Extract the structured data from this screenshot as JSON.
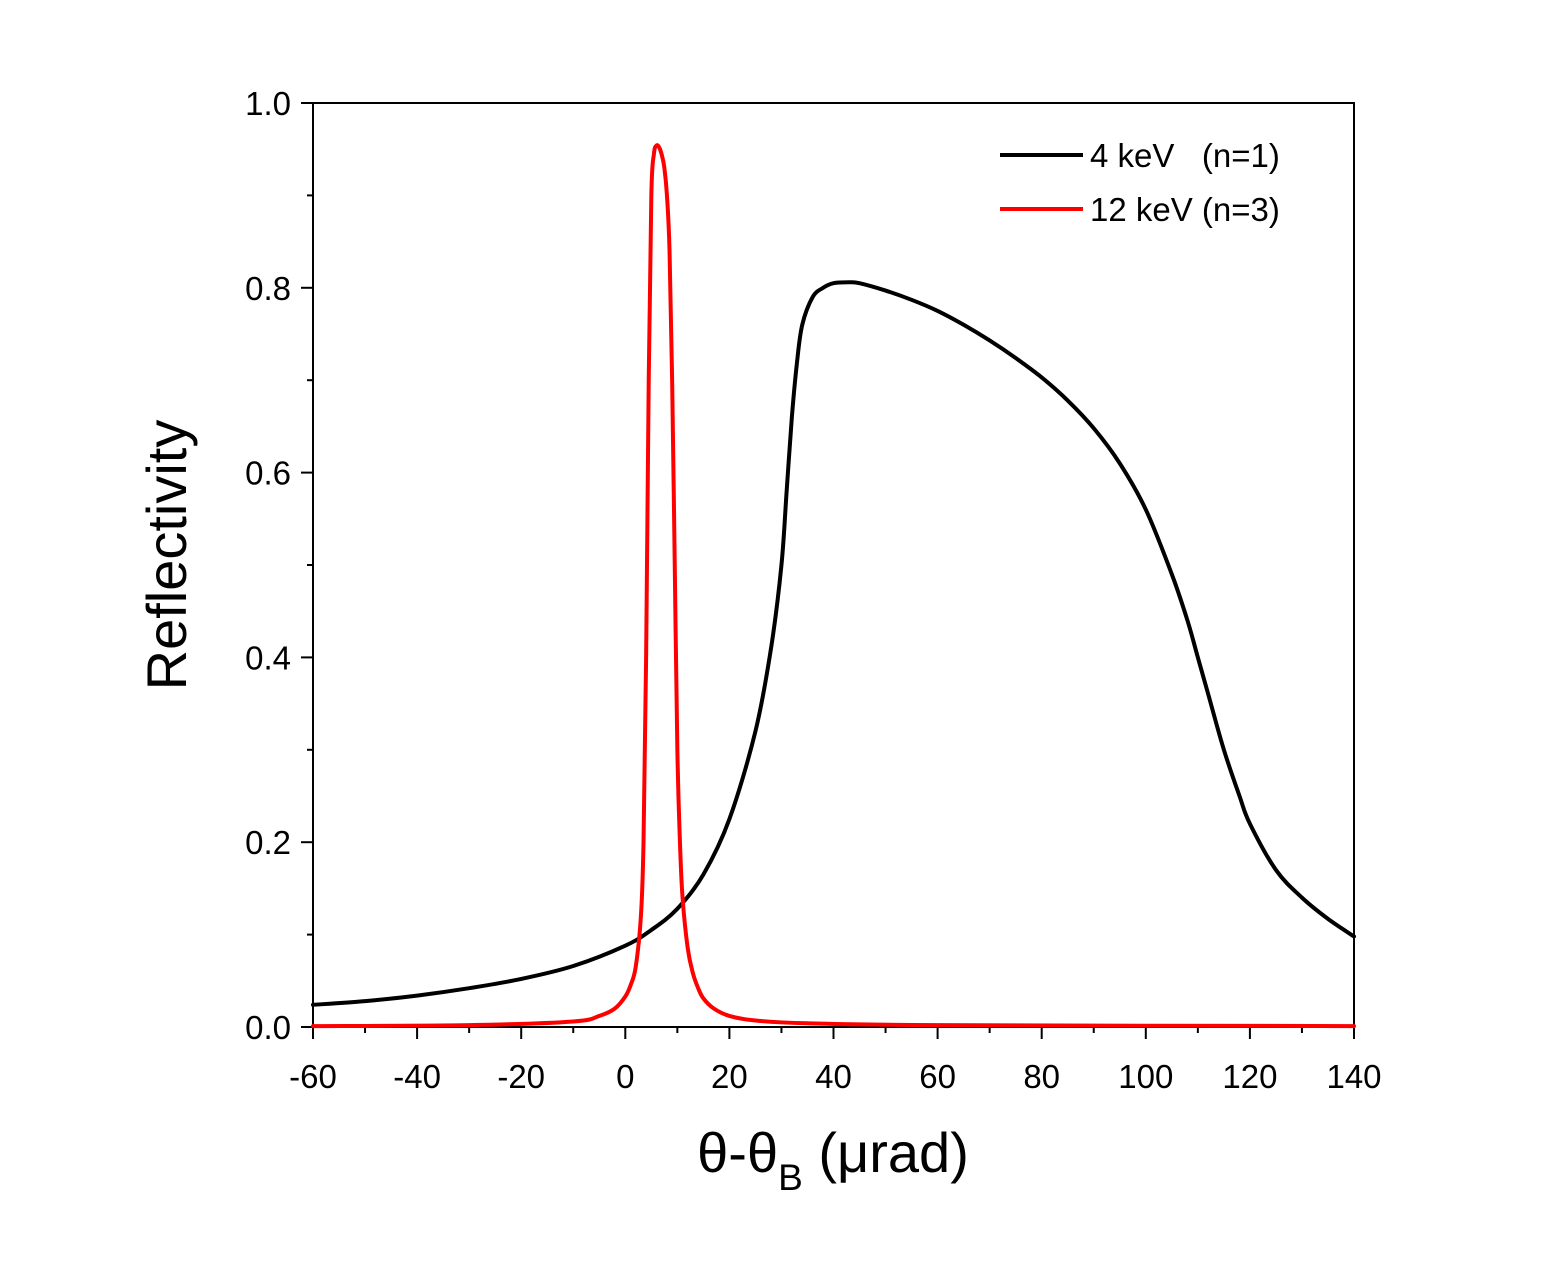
{
  "chart_data": {
    "type": "line",
    "title": "",
    "xlabel": {
      "main": "θ-θ",
      "sub": "B",
      "tail": " (μrad)"
    },
    "ylabel": "Reflectivity",
    "xlim": [
      -60,
      140
    ],
    "ylim": [
      0,
      1.0
    ],
    "x_ticks": [
      "-60",
      "-40",
      "-20",
      "0",
      "20",
      "40",
      "60",
      "80",
      "100",
      "120",
      "140"
    ],
    "y_ticks": [
      "0.0",
      "0.2",
      "0.4",
      "0.6",
      "0.8",
      "1.0"
    ],
    "grid": false,
    "legend_position": "top-right",
    "series": [
      {
        "name": "4 keV   (n=1)",
        "color": "#000000",
        "x": [
          -60,
          -50,
          -40,
          -30,
          -20,
          -10,
          0,
          5,
          10,
          15,
          20,
          25,
          28,
          30,
          31,
          32,
          33,
          34,
          36,
          38,
          40,
          43,
          45,
          50,
          55,
          60,
          65,
          70,
          75,
          80,
          85,
          90,
          95,
          100,
          105,
          108,
          110,
          112,
          115,
          118,
          120,
          125,
          130,
          135,
          140
        ],
        "y": [
          0.024,
          0.028,
          0.034,
          0.042,
          0.052,
          0.066,
          0.088,
          0.105,
          0.128,
          0.165,
          0.225,
          0.32,
          0.41,
          0.5,
          0.58,
          0.66,
          0.72,
          0.76,
          0.79,
          0.8,
          0.805,
          0.806,
          0.805,
          0.797,
          0.787,
          0.775,
          0.76,
          0.743,
          0.724,
          0.703,
          0.678,
          0.648,
          0.61,
          0.56,
          0.49,
          0.44,
          0.4,
          0.36,
          0.3,
          0.25,
          0.22,
          0.17,
          0.14,
          0.117,
          0.098
        ]
      },
      {
        "name": "12 keV (n=3)",
        "color": "#ff0000",
        "x": [
          -60,
          -30,
          -10,
          -5,
          -2,
          0,
          1,
          2,
          3,
          3.5,
          4,
          4.5,
          5,
          5.5,
          6,
          6.5,
          7,
          7.5,
          8,
          8.5,
          9,
          9.5,
          10,
          10.5,
          11,
          12,
          13,
          14,
          15,
          17,
          20,
          25,
          35,
          60,
          140
        ],
        "y": [
          0.001,
          0.002,
          0.006,
          0.012,
          0.02,
          0.033,
          0.045,
          0.065,
          0.12,
          0.2,
          0.4,
          0.7,
          0.9,
          0.945,
          0.954,
          0.952,
          0.944,
          0.93,
          0.9,
          0.84,
          0.7,
          0.5,
          0.3,
          0.2,
          0.14,
          0.085,
          0.058,
          0.042,
          0.031,
          0.02,
          0.012,
          0.007,
          0.004,
          0.002,
          0.001
        ]
      }
    ]
  }
}
